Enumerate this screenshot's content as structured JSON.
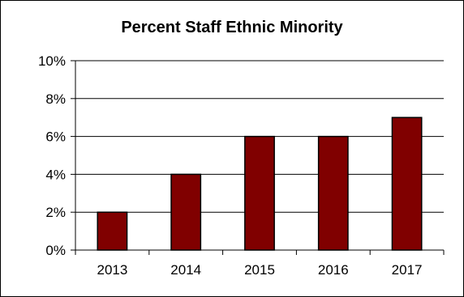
{
  "chart_data": {
    "type": "bar",
    "title": "Percent Staff Ethnic Minority",
    "xlabel": "",
    "ylabel": "",
    "categories": [
      "2013",
      "2014",
      "2015",
      "2016",
      "2017"
    ],
    "values": [
      2,
      4,
      6,
      6,
      7
    ],
    "ylim": [
      0,
      10
    ],
    "yticks": [
      0,
      2,
      4,
      6,
      8,
      10
    ],
    "ytick_labels": [
      "0%",
      "2%",
      "4%",
      "6%",
      "8%",
      "10%"
    ],
    "grid": true,
    "legend": "none",
    "bar_color": "#800000",
    "bar_outline_color": "#000000"
  }
}
